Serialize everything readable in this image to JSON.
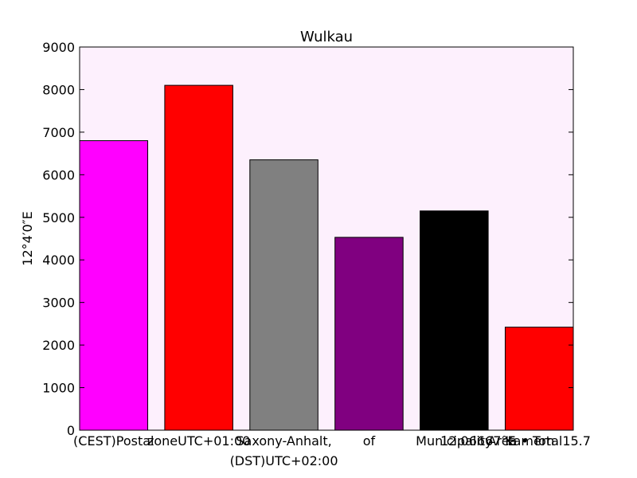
{
  "chart_data": {
    "type": "bar",
    "title": "Wulkau",
    "xlabel": "",
    "ylabel": "12°4′0″E",
    "ylim": [
      0,
      9000
    ],
    "yticks": [
      0,
      1000,
      2000,
      3000,
      4000,
      5000,
      6000,
      7000,
      8000,
      9000
    ],
    "grid": false,
    "plot_background": "#fdf0fd",
    "categories": [
      "(CEST)Postal",
      "zoneUTC+01:00",
      "Saxony-Anhalt,",
      "of",
      "Municipality",
      "Area • Total15.7"
    ],
    "extra_labels": [
      "(DST)UTC+02:00",
      "12.06667°E",
      "Kamern"
    ],
    "values": [
      6800,
      8100,
      6350,
      4530,
      5150,
      2420
    ],
    "colors": [
      "#ff00ff",
      "#ff0000",
      "#808080",
      "#800080",
      "#000000",
      "#ff0000"
    ]
  }
}
